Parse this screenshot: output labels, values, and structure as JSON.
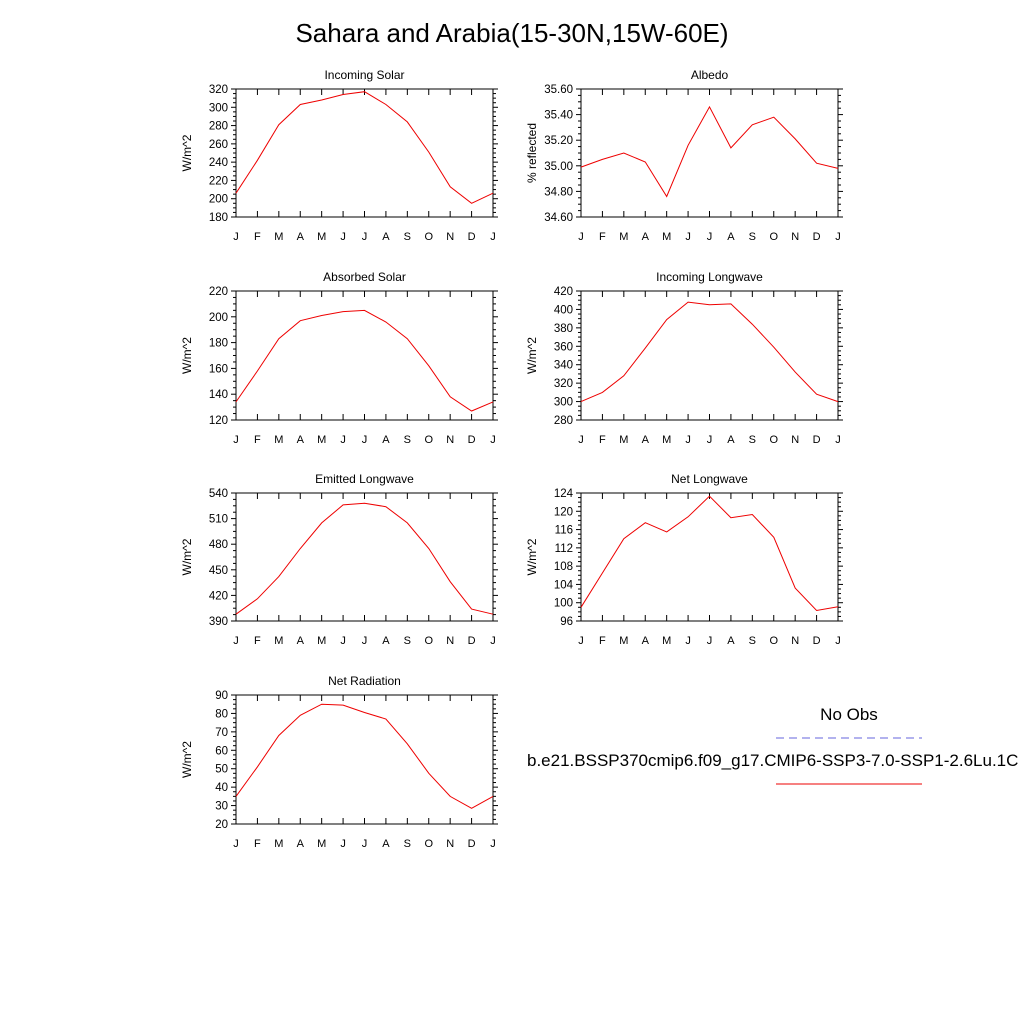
{
  "title": "Sahara and Arabia(15-30N,15W-60E)",
  "legend": {
    "obs_label": "No Obs",
    "obs_color": "#6666dd",
    "case_label": "b.e21.BSSP370cmip6.f09_g17.CMIP6-SSP3-7.0-SSP1-2.6Lu.1C",
    "case_color": "#ee0000"
  },
  "chart_data": [
    {
      "type": "line",
      "title": "Incoming Solar",
      "ylabel": "W/m^2",
      "x": [
        "J",
        "F",
        "M",
        "A",
        "M",
        "J",
        "J",
        "A",
        "S",
        "O",
        "N",
        "D",
        "J"
      ],
      "ylim": [
        180,
        320
      ],
      "yticks": [
        "180",
        "200",
        "220",
        "240",
        "260",
        "280",
        "300",
        "320"
      ],
      "series": [
        {
          "color": "#ee0000",
          "values": [
            206,
            242,
            281,
            303,
            308,
            314,
            317,
            303,
            284,
            251,
            213,
            195,
            206
          ]
        }
      ]
    },
    {
      "type": "line",
      "title": "Albedo",
      "ylabel": "% reflected",
      "x": [
        "J",
        "F",
        "M",
        "A",
        "M",
        "J",
        "J",
        "A",
        "S",
        "O",
        "N",
        "D",
        "J"
      ],
      "ylim": [
        34.6,
        35.6
      ],
      "yticks": [
        "34.60",
        "34.80",
        "35.00",
        "35.20",
        "35.40",
        "35.60"
      ],
      "series": [
        {
          "color": "#ee0000",
          "values": [
            34.99,
            35.05,
            35.1,
            35.03,
            34.76,
            35.16,
            35.46,
            35.14,
            35.32,
            35.38,
            35.21,
            35.02,
            34.98
          ]
        }
      ]
    },
    {
      "type": "line",
      "title": "Absorbed Solar",
      "ylabel": "W/m^2",
      "x": [
        "J",
        "F",
        "M",
        "A",
        "M",
        "J",
        "J",
        "A",
        "S",
        "O",
        "N",
        "D",
        "J"
      ],
      "ylim": [
        120,
        220
      ],
      "yticks": [
        "120",
        "140",
        "160",
        "180",
        "200",
        "220"
      ],
      "series": [
        {
          "color": "#ee0000",
          "values": [
            134,
            158,
            183,
            197,
            201,
            204,
            205,
            196,
            183,
            162,
            138,
            127,
            134
          ]
        }
      ]
    },
    {
      "type": "line",
      "title": "Incoming Longwave",
      "ylabel": "W/m^2",
      "x": [
        "J",
        "F",
        "M",
        "A",
        "M",
        "J",
        "J",
        "A",
        "S",
        "O",
        "N",
        "D",
        "J"
      ],
      "ylim": [
        280,
        420
      ],
      "yticks": [
        "280",
        "300",
        "320",
        "340",
        "360",
        "380",
        "400",
        "420"
      ],
      "series": [
        {
          "color": "#ee0000",
          "values": [
            300,
            310,
            328,
            358,
            389,
            408,
            405,
            406,
            384,
            359,
            332,
            308,
            300
          ]
        }
      ]
    },
    {
      "type": "line",
      "title": "Emitted Longwave",
      "ylabel": "W/m^2",
      "x": [
        "J",
        "F",
        "M",
        "A",
        "M",
        "J",
        "J",
        "A",
        "S",
        "O",
        "N",
        "D",
        "J"
      ],
      "ylim": [
        390,
        540
      ],
      "yticks": [
        "390",
        "420",
        "450",
        "480",
        "510",
        "540"
      ],
      "series": [
        {
          "color": "#ee0000",
          "values": [
            398,
            416,
            442,
            475,
            505,
            526,
            528,
            524,
            505,
            475,
            436,
            404,
            398
          ]
        }
      ]
    },
    {
      "type": "line",
      "title": "Net Longwave",
      "ylabel": "W/m^2",
      "x": [
        "J",
        "F",
        "M",
        "A",
        "M",
        "J",
        "J",
        "A",
        "S",
        "O",
        "N",
        "D",
        "J"
      ],
      "ylim": [
        96,
        124
      ],
      "yticks": [
        "96",
        "100",
        "104",
        "108",
        "112",
        "116",
        "120",
        "124"
      ],
      "series": [
        {
          "color": "#ee0000",
          "values": [
            99,
            106.5,
            114,
            117.5,
            115.5,
            118.8,
            123.3,
            118.6,
            119.3,
            114.3,
            103.2,
            98.3,
            99.1
          ]
        }
      ]
    },
    {
      "type": "line",
      "title": "Net Radiation",
      "ylabel": "W/m^2",
      "x": [
        "J",
        "F",
        "M",
        "A",
        "M",
        "J",
        "J",
        "A",
        "S",
        "O",
        "N",
        "D",
        "J"
      ],
      "ylim": [
        20,
        90
      ],
      "yticks": [
        "20",
        "30",
        "40",
        "50",
        "60",
        "70",
        "80",
        "90"
      ],
      "series": [
        {
          "color": "#ee0000",
          "values": [
            35,
            51,
            68,
            79,
            85,
            84.5,
            80.5,
            77,
            63.5,
            47.5,
            35,
            28.5,
            35
          ]
        }
      ]
    }
  ]
}
